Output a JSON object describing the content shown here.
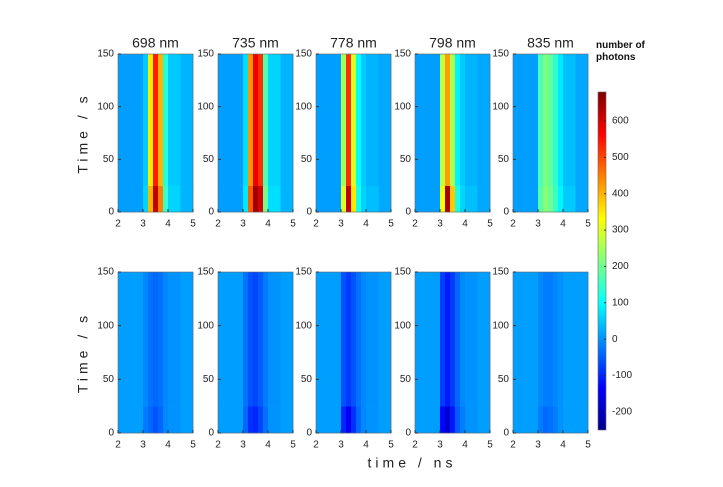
{
  "figure": {
    "xlabel": "time / ns",
    "colormap": "jet",
    "clim": [
      -250,
      680
    ],
    "cticks": [
      -200,
      -100,
      0,
      100,
      200,
      300,
      400,
      500,
      600
    ],
    "clabel": "number of photons"
  },
  "chart_data": [
    {
      "type": "heatmap",
      "title": "698 nm",
      "ylabel": "Time / s",
      "xlim": [
        2,
        5
      ],
      "ylim": [
        0,
        150
      ],
      "xticks": [
        2,
        3,
        4,
        5
      ],
      "yticks": [
        0,
        50,
        100,
        150
      ],
      "x_edges": [
        2,
        3,
        3.2,
        3.4,
        3.6,
        3.8,
        4,
        4.5,
        5
      ],
      "y_edges": [
        0,
        25,
        150
      ],
      "z": [
        [
          10,
          60,
          400,
          620,
          450,
          150,
          60,
          30
        ],
        [
          10,
          50,
          350,
          540,
          400,
          130,
          50,
          30
        ]
      ]
    },
    {
      "type": "heatmap",
      "title": "735 nm",
      "xlim": [
        2,
        5
      ],
      "ylim": [
        0,
        150
      ],
      "xticks": [
        2,
        3,
        4,
        5
      ],
      "yticks": [
        0,
        50,
        100,
        150
      ],
      "x_edges": [
        2,
        3,
        3.2,
        3.4,
        3.6,
        3.8,
        4,
        4.5,
        5
      ],
      "y_edges": [
        0,
        25,
        150
      ],
      "z": [
        [
          10,
          80,
          480,
          650,
          600,
          200,
          70,
          30
        ],
        [
          10,
          70,
          430,
          580,
          520,
          170,
          60,
          30
        ]
      ]
    },
    {
      "type": "heatmap",
      "title": "778 nm",
      "xlim": [
        2,
        5
      ],
      "ylim": [
        0,
        150
      ],
      "xticks": [
        2,
        3,
        4,
        5
      ],
      "yticks": [
        0,
        50,
        100,
        150
      ],
      "x_edges": [
        2,
        3,
        3.2,
        3.4,
        3.6,
        3.8,
        4,
        4.5,
        5
      ],
      "y_edges": [
        0,
        25,
        150
      ],
      "z": [
        [
          10,
          300,
          620,
          350,
          120,
          60,
          40,
          20
        ],
        [
          10,
          250,
          520,
          300,
          100,
          50,
          30,
          20
        ]
      ]
    },
    {
      "type": "heatmap",
      "title": "798 nm",
      "xlim": [
        2,
        5
      ],
      "ylim": [
        0,
        150
      ],
      "xticks": [
        2,
        3,
        4,
        5
      ],
      "yticks": [
        0,
        50,
        100,
        150
      ],
      "x_edges": [
        2,
        3,
        3.2,
        3.4,
        3.6,
        3.8,
        4,
        4.5,
        5
      ],
      "y_edges": [
        0,
        25,
        150
      ],
      "z": [
        [
          10,
          320,
          640,
          380,
          120,
          60,
          40,
          20
        ],
        [
          10,
          270,
          420,
          260,
          90,
          50,
          30,
          20
        ]
      ]
    },
    {
      "type": "heatmap",
      "title": "835 nm",
      "xlim": [
        2,
        5
      ],
      "ylim": [
        0,
        150
      ],
      "xticks": [
        2,
        3,
        4,
        5
      ],
      "yticks": [
        0,
        50,
        100,
        150
      ],
      "x_edges": [
        2,
        3,
        3.2,
        3.4,
        3.6,
        3.8,
        4,
        4.5,
        5
      ],
      "y_edges": [
        0,
        25,
        150
      ],
      "z": [
        [
          10,
          180,
          220,
          200,
          150,
          90,
          50,
          20
        ],
        [
          10,
          170,
          210,
          190,
          140,
          80,
          40,
          20
        ]
      ]
    },
    {
      "type": "heatmap",
      "ylabel": "Time / s",
      "xlim": [
        2,
        5
      ],
      "ylim": [
        0,
        150
      ],
      "xticks": [
        2,
        3,
        4,
        5
      ],
      "yticks": [
        0,
        50,
        100,
        150
      ],
      "x_edges": [
        2,
        3,
        3.2,
        3.4,
        3.6,
        3.8,
        4,
        4.5,
        5
      ],
      "y_edges": [
        0,
        25,
        150
      ],
      "z": [
        [
          10,
          -20,
          -40,
          -60,
          -40,
          -10,
          0,
          10
        ],
        [
          10,
          -10,
          -30,
          -40,
          -30,
          -10,
          0,
          10
        ]
      ]
    },
    {
      "type": "heatmap",
      "xlim": [
        2,
        5
      ],
      "ylim": [
        0,
        150
      ],
      "xticks": [
        2,
        3,
        4,
        5
      ],
      "yticks": [
        0,
        50,
        100,
        150
      ],
      "x_edges": [
        2,
        3,
        3.2,
        3.4,
        3.6,
        3.8,
        4,
        4.5,
        5
      ],
      "y_edges": [
        0,
        25,
        150
      ],
      "z": [
        [
          10,
          -40,
          -90,
          -100,
          -70,
          -30,
          0,
          10
        ],
        [
          10,
          -30,
          -60,
          -70,
          -50,
          -20,
          0,
          10
        ]
      ]
    },
    {
      "type": "heatmap",
      "xlim": [
        2,
        5
      ],
      "ylim": [
        0,
        150
      ],
      "xticks": [
        2,
        3,
        4,
        5
      ],
      "yticks": [
        0,
        50,
        100,
        150
      ],
      "x_edges": [
        2,
        3,
        3.2,
        3.4,
        3.6,
        3.8,
        4,
        4.5,
        5
      ],
      "y_edges": [
        0,
        25,
        150
      ],
      "z": [
        [
          10,
          -100,
          -140,
          -90,
          -40,
          -10,
          0,
          10
        ],
        [
          10,
          -60,
          -80,
          -60,
          -30,
          -10,
          0,
          10
        ]
      ]
    },
    {
      "type": "heatmap",
      "xlim": [
        2,
        5
      ],
      "ylim": [
        0,
        150
      ],
      "xticks": [
        2,
        3,
        4,
        5
      ],
      "yticks": [
        0,
        50,
        100,
        150
      ],
      "x_edges": [
        2,
        3,
        3.2,
        3.4,
        3.6,
        3.8,
        4,
        4.5,
        5
      ],
      "y_edges": [
        0,
        25,
        150
      ],
      "z": [
        [
          10,
          -130,
          -180,
          -110,
          -50,
          -20,
          0,
          10
        ],
        [
          10,
          -80,
          -110,
          -80,
          -40,
          -10,
          0,
          10
        ]
      ]
    },
    {
      "type": "heatmap",
      "xlim": [
        2,
        5
      ],
      "ylim": [
        0,
        150
      ],
      "xticks": [
        2,
        3,
        4,
        5
      ],
      "yticks": [
        0,
        50,
        100,
        150
      ],
      "x_edges": [
        2,
        3,
        3.2,
        3.4,
        3.6,
        3.8,
        4,
        4.5,
        5
      ],
      "y_edges": [
        0,
        25,
        150
      ],
      "z": [
        [
          10,
          -20,
          -40,
          -30,
          -20,
          0,
          10,
          10
        ],
        [
          10,
          -10,
          -20,
          -20,
          -10,
          0,
          10,
          10
        ]
      ]
    }
  ]
}
